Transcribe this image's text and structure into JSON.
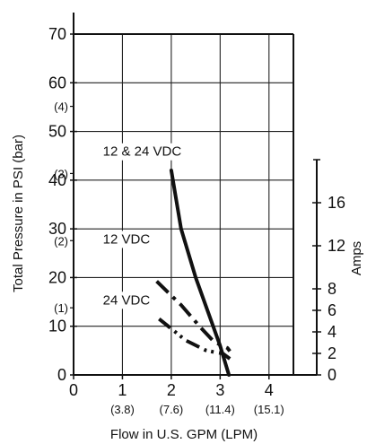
{
  "chart_data": {
    "type": "line",
    "title": "",
    "xlabel": "Flow in U.S. GPM (LPM)",
    "ylabel": "Total Pressure in PSI (bar)",
    "y2label": "Amps",
    "xlim": [
      0,
      4.5
    ],
    "ylim": [
      0,
      70
    ],
    "y2lim": [
      0,
      20
    ],
    "x_ticks": [
      {
        "v": 0,
        "label": "0",
        "sub": ""
      },
      {
        "v": 1,
        "label": "1",
        "sub": "(3.8)"
      },
      {
        "v": 2,
        "label": "2",
        "sub": "(7.6)"
      },
      {
        "v": 3,
        "label": "3",
        "sub": "(11.4)"
      },
      {
        "v": 4,
        "label": "4",
        "sub": "(15.1)"
      }
    ],
    "y_ticks": [
      {
        "v": 0,
        "label": "0"
      },
      {
        "v": 10,
        "label": "10"
      },
      {
        "v": 20,
        "label": "20"
      },
      {
        "v": 30,
        "label": "30"
      },
      {
        "v": 40,
        "label": "40"
      },
      {
        "v": 50,
        "label": "50"
      },
      {
        "v": 60,
        "label": "60"
      },
      {
        "v": 70,
        "label": "70"
      }
    ],
    "bar_ticks": [
      {
        "v": 13.79,
        "label": "(1)"
      },
      {
        "v": 27.58,
        "label": "(2)"
      },
      {
        "v": 41.37,
        "label": "(3)"
      },
      {
        "v": 55.16,
        "label": "(4)"
      }
    ],
    "amp_ticks": [
      {
        "v": 0,
        "label": "0"
      },
      {
        "v": 2,
        "label": "2"
      },
      {
        "v": 4,
        "label": "4"
      },
      {
        "v": 6,
        "label": "6"
      },
      {
        "v": 8,
        "label": "8"
      },
      {
        "v": 12,
        "label": "12"
      },
      {
        "v": 16,
        "label": "16"
      }
    ],
    "series": [
      {
        "label": "12 & 24 VDC",
        "axis": "psi",
        "style": "solid",
        "x": [
          2.0,
          2.2,
          2.5,
          2.75,
          3.0,
          3.18
        ],
        "y": [
          42,
          30,
          20,
          13,
          6,
          0
        ],
        "label_at": {
          "x": 0.6,
          "y": 45
        }
      },
      {
        "label": "12 VDC",
        "axis": "amps",
        "style": "dashdot",
        "x": [
          1.7,
          2.2,
          2.6,
          2.85,
          3.0,
          3.15,
          3.2
        ],
        "y": [
          8.7,
          6.5,
          4.4,
          3.2,
          2.8,
          2.5,
          2.2
        ],
        "label_at": {
          "x": 0.6,
          "y": 27
        }
      },
      {
        "label": "24 VDC",
        "axis": "amps",
        "style": "dashdotdot",
        "x": [
          1.75,
          2.3,
          2.7,
          2.9,
          3.05,
          3.2
        ],
        "y": [
          5.2,
          3.2,
          2.3,
          2.1,
          2.0,
          1.5
        ],
        "label_at": {
          "x": 0.6,
          "y": 14.5
        }
      }
    ],
    "grid": true
  }
}
